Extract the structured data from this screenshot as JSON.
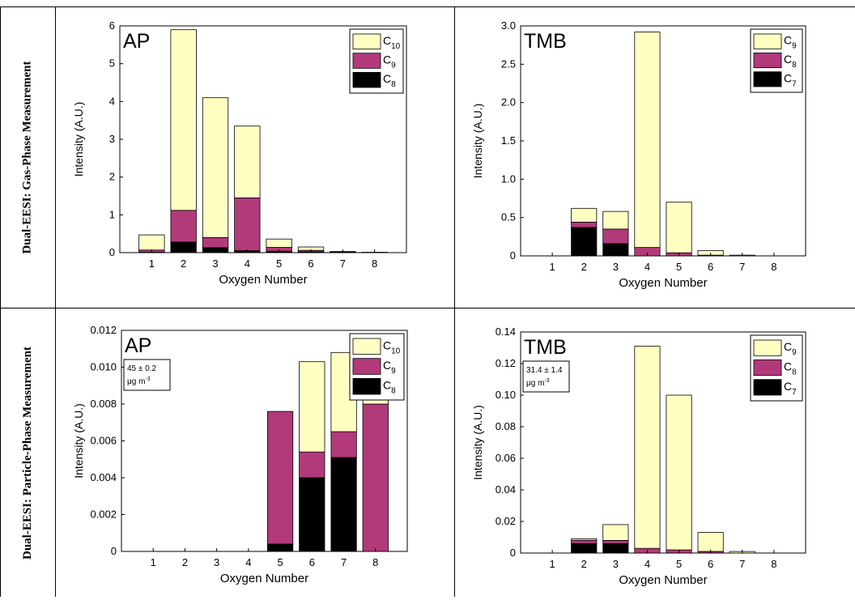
{
  "rows": [
    {
      "label": "Dual-EESI: Gas-Phase Measurement"
    },
    {
      "label": "Dual-EESI: Particle-Phase Measurement"
    }
  ],
  "colors": {
    "top": "#ffffc2",
    "mid": "#b23a7a",
    "bottom": "#000000",
    "frame": "#000000"
  },
  "chart_data": [
    {
      "type": "bar",
      "stacked": true,
      "title": "AP",
      "xlabel": "Oxygen Number",
      "ylabel": "Intensity (A.U.)",
      "categories": [
        "1",
        "2",
        "3",
        "4",
        "5",
        "6",
        "7",
        "8"
      ],
      "ylim": [
        0,
        6
      ],
      "yticks": [
        "0",
        "1",
        "2",
        "3",
        "4",
        "5",
        "6"
      ],
      "series": [
        {
          "name": "C8",
          "sub": "8",
          "values": [
            0.01,
            0.28,
            0.13,
            0.05,
            0.04,
            0.02,
            0.01,
            0.0
          ]
        },
        {
          "name": "C9",
          "sub": "9",
          "values": [
            0.06,
            0.84,
            0.27,
            1.4,
            0.1,
            0.04,
            0.01,
            0.0
          ]
        },
        {
          "name": "C10",
          "sub": "10",
          "values": [
            0.4,
            4.78,
            3.7,
            1.9,
            0.22,
            0.09,
            0.01,
            0.01
          ]
        }
      ],
      "legend": "top-right",
      "annotation": ""
    },
    {
      "type": "bar",
      "stacked": true,
      "title": "TMB",
      "xlabel": "Oxygen Number",
      "ylabel": "Intensity (A.U.)",
      "categories": [
        "1",
        "2",
        "3",
        "4",
        "5",
        "6",
        "7",
        "8"
      ],
      "ylim": [
        0,
        3
      ],
      "yticks": [
        "0",
        "0.5",
        "1.0",
        "1.5",
        "2.0",
        "2.5",
        "3.0"
      ],
      "series": [
        {
          "name": "C7",
          "sub": "7",
          "values": [
            0.0,
            0.37,
            0.16,
            0.0,
            0.0,
            0.0,
            0.0,
            0.0
          ]
        },
        {
          "name": "C8",
          "sub": "8",
          "values": [
            0.0,
            0.07,
            0.19,
            0.11,
            0.04,
            0.01,
            0.0,
            0.0
          ]
        },
        {
          "name": "C9",
          "sub": "9",
          "values": [
            0.0,
            0.18,
            0.23,
            2.81,
            0.66,
            0.06,
            0.01,
            0.0
          ]
        }
      ],
      "legend": "top-right",
      "annotation": ""
    },
    {
      "type": "bar",
      "stacked": true,
      "title": "AP",
      "xlabel": "Oxygen Number",
      "ylabel": "Intensity (A.U.)",
      "categories": [
        "1",
        "2",
        "3",
        "4",
        "5",
        "6",
        "7",
        "8"
      ],
      "ylim": [
        0,
        0.012
      ],
      "yticks": [
        "0",
        "0.002",
        "0.004",
        "0.006",
        "0.008",
        "0.010",
        "0.012"
      ],
      "series": [
        {
          "name": "C8",
          "sub": "8",
          "values": [
            0.0,
            0.0,
            0.0,
            0.0,
            0.0004,
            0.004,
            0.0051,
            0.0
          ]
        },
        {
          "name": "C9",
          "sub": "9",
          "values": [
            0.0,
            0.0,
            0.0,
            0.0,
            0.0072,
            0.0014,
            0.0014,
            0.008
          ]
        },
        {
          "name": "C10",
          "sub": "10",
          "values": [
            0.0,
            0.0,
            0.0,
            0.0,
            0.0,
            0.0049,
            0.0043,
            0.0013
          ]
        }
      ],
      "legend": "top-right",
      "annotation": {
        "line1": "45 ± 0.2",
        "line2_unit": "μg m",
        "line2_exp": "-3"
      }
    },
    {
      "type": "bar",
      "stacked": true,
      "title": "TMB",
      "xlabel": "Oxygen Number",
      "ylabel": "Intensity (A.U.)",
      "categories": [
        "1",
        "2",
        "3",
        "4",
        "5",
        "6",
        "7",
        "8"
      ],
      "ylim": [
        0,
        0.14
      ],
      "yticks": [
        "0",
        "0.02",
        "0.04",
        "0.06",
        "0.08",
        "0.10",
        "0.12",
        "0.14"
      ],
      "series": [
        {
          "name": "C7",
          "sub": "7",
          "values": [
            0.0,
            0.006,
            0.006,
            0.0,
            0.0,
            0.0,
            0.0,
            0.0
          ]
        },
        {
          "name": "C8",
          "sub": "8",
          "values": [
            0.0,
            0.002,
            0.002,
            0.003,
            0.002,
            0.001,
            0.0,
            0.0
          ]
        },
        {
          "name": "C9",
          "sub": "9",
          "values": [
            0.0,
            0.001,
            0.01,
            0.128,
            0.098,
            0.012,
            0.001,
            0.0
          ]
        }
      ],
      "legend": "top-right",
      "annotation": {
        "line1": "31.4 ± 1.4",
        "line2_unit": "μg m",
        "line2_exp": "-3"
      }
    }
  ]
}
